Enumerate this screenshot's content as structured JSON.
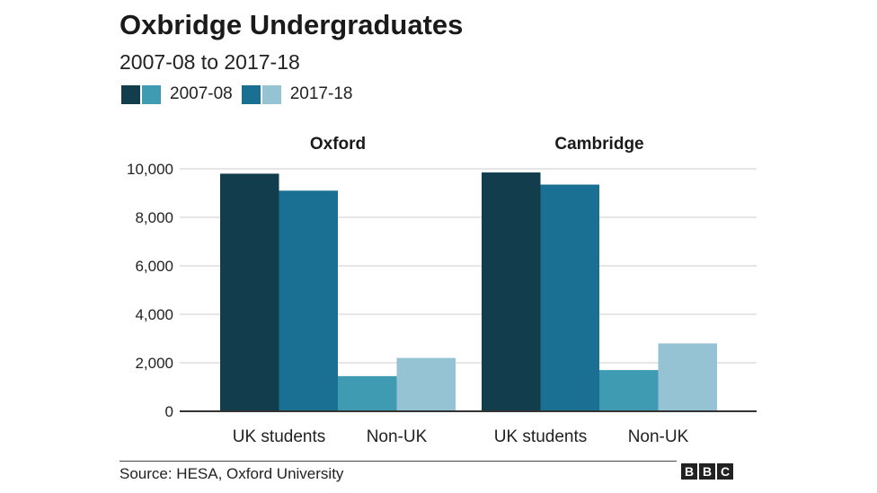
{
  "title": "Oxbridge Undergraduates",
  "subtitle": "2007-08 to 2017-18",
  "source": "Source: HESA, Oxford University",
  "logo_letters": [
    "B",
    "B",
    "C"
  ],
  "legend": [
    {
      "label": "2007-08",
      "colors": [
        "#123d4c",
        "#3f9bb2"
      ]
    },
    {
      "label": "2017-18",
      "colors": [
        "#1a7093",
        "#96c3d3"
      ]
    }
  ],
  "chart_data": {
    "type": "bar",
    "title": "Oxbridge Undergraduates",
    "subtitle": "2007-08 to 2017-18",
    "ylim": [
      0,
      10000
    ],
    "yticks": [
      0,
      2000,
      4000,
      6000,
      8000,
      10000
    ],
    "ytick_labels": [
      "0",
      "2,000",
      "4,000",
      "6,000",
      "8,000",
      "10,000"
    ],
    "grid": true,
    "legend_position": "top-left",
    "series_names": [
      "2007-08",
      "2017-18"
    ],
    "categories": [
      "UK students",
      "Non-UK"
    ],
    "category_labels": [
      "UK students",
      "Non-UK"
    ],
    "panels": [
      {
        "name": "Oxford",
        "bars": [
          {
            "category": "UK students",
            "series": "2007-08",
            "value": 9800,
            "color": "#123d4c"
          },
          {
            "category": "UK students",
            "series": "2017-18",
            "value": 9100,
            "color": "#1a7093"
          },
          {
            "category": "Non-UK",
            "series": "2007-08",
            "value": 1450,
            "color": "#3f9bb2"
          },
          {
            "category": "Non-UK",
            "series": "2017-18",
            "value": 2200,
            "color": "#96c3d3"
          }
        ]
      },
      {
        "name": "Cambridge",
        "bars": [
          {
            "category": "UK students",
            "series": "2007-08",
            "value": 9850,
            "color": "#123d4c"
          },
          {
            "category": "UK students",
            "series": "2017-18",
            "value": 9350,
            "color": "#1a7093"
          },
          {
            "category": "Non-UK",
            "series": "2007-08",
            "value": 1700,
            "color": "#3f9bb2"
          },
          {
            "category": "Non-UK",
            "series": "2017-18",
            "value": 2800,
            "color": "#96c3d3"
          }
        ]
      }
    ]
  }
}
